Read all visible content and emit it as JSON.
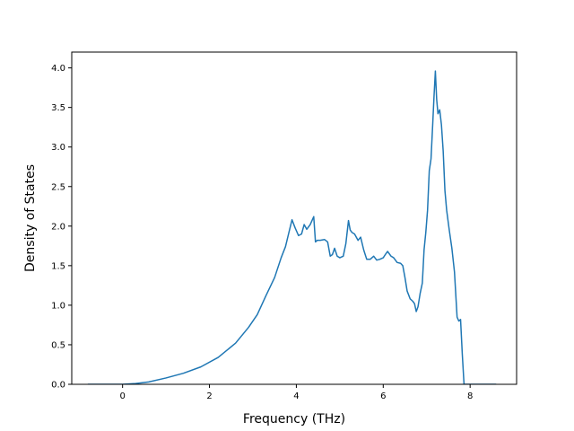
{
  "chart_data": {
    "type": "line",
    "title": "",
    "xlabel": "Frequency (THz)",
    "ylabel": "Density of States",
    "xlim": [
      -1.17,
      9.07
    ],
    "ylim": [
      0.0,
      4.2
    ],
    "xticks": [
      0,
      2,
      4,
      6,
      8
    ],
    "yticks": [
      0.0,
      0.5,
      1.0,
      1.5,
      2.0,
      2.5,
      3.0,
      3.5,
      4.0
    ],
    "xtick_labels": [
      "0",
      "2",
      "4",
      "6",
      "8"
    ],
    "ytick_labels": [
      "0.0",
      "0.5",
      "1.0",
      "1.5",
      "2.0",
      "2.5",
      "3.0",
      "3.5",
      "4.0"
    ],
    "grid": false,
    "legend": "none",
    "series": [
      {
        "color": "#1f77b4",
        "x": [
          -0.8,
          0.0,
          0.3,
          0.6,
          1.0,
          1.4,
          1.8,
          2.2,
          2.6,
          2.9,
          3.1,
          3.3,
          3.5,
          3.65,
          3.75,
          3.82,
          3.9,
          3.97,
          4.05,
          4.12,
          4.18,
          4.24,
          4.32,
          4.4,
          4.44,
          4.48,
          4.55,
          4.65,
          4.72,
          4.78,
          4.83,
          4.88,
          4.94,
          5.0,
          5.08,
          5.14,
          5.2,
          5.24,
          5.28,
          5.34,
          5.42,
          5.48,
          5.55,
          5.62,
          5.7,
          5.78,
          5.85,
          5.92,
          6.0,
          6.06,
          6.1,
          6.18,
          6.24,
          6.32,
          6.4,
          6.45,
          6.5,
          6.55,
          6.62,
          6.68,
          6.72,
          6.76,
          6.8,
          6.85,
          6.9,
          6.94,
          6.98,
          7.02,
          7.06,
          7.1,
          7.14,
          7.17,
          7.2,
          7.23,
          7.26,
          7.3,
          7.34,
          7.38,
          7.42,
          7.46,
          7.52,
          7.58,
          7.64,
          7.7,
          7.74,
          7.78,
          7.82,
          7.86,
          8.2,
          8.6
        ],
        "y": [
          0.0,
          0.0,
          0.01,
          0.03,
          0.08,
          0.14,
          0.22,
          0.34,
          0.52,
          0.72,
          0.88,
          1.12,
          1.35,
          1.6,
          1.74,
          1.9,
          2.08,
          1.98,
          1.88,
          1.9,
          2.02,
          1.96,
          2.02,
          2.12,
          1.8,
          1.82,
          1.82,
          1.83,
          1.8,
          1.62,
          1.64,
          1.72,
          1.62,
          1.6,
          1.62,
          1.78,
          2.07,
          1.95,
          1.92,
          1.9,
          1.82,
          1.86,
          1.7,
          1.58,
          1.58,
          1.62,
          1.57,
          1.58,
          1.6,
          1.65,
          1.68,
          1.62,
          1.6,
          1.54,
          1.53,
          1.5,
          1.35,
          1.18,
          1.08,
          1.05,
          1.02,
          0.92,
          0.98,
          1.15,
          1.28,
          1.7,
          1.92,
          2.2,
          2.7,
          2.85,
          3.3,
          3.65,
          3.96,
          3.6,
          3.42,
          3.47,
          3.28,
          2.95,
          2.45,
          2.2,
          1.95,
          1.72,
          1.42,
          0.85,
          0.8,
          0.82,
          0.38,
          0.0,
          0.0,
          0.0
        ]
      }
    ]
  }
}
